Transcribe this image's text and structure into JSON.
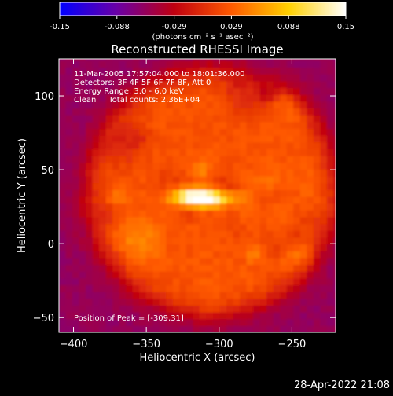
{
  "chart_data": {
    "type": "heatmap",
    "title": "Reconstructed RHESSI Image",
    "xlabel": "Heliocentric X (arcsec)",
    "ylabel": "Heliocentric Y (arcsec)",
    "xlim": [
      -410,
      -220
    ],
    "ylim": [
      -60,
      125
    ],
    "x_ticks": [
      -400,
      -350,
      -300,
      -250
    ],
    "y_ticks": [
      -50,
      0,
      50,
      100
    ],
    "colorbar": {
      "min": -0.15,
      "max": 0.15,
      "ticks": [
        "-0.15",
        "-0.088",
        "-0.029",
        "0.029",
        "0.088",
        "0.15"
      ],
      "units_label": "(photons cm⁻² s⁻¹ asec⁻²)",
      "colormap": [
        "#0000ff",
        "#6a00a6",
        "#c00010",
        "#ff5a00",
        "#ffd000",
        "#ffffff"
      ]
    },
    "annotations": [
      "11-Mar-2005 17:57:04.000 to 18:01:36.000",
      "Detectors: 3F 4F 5F 6F 7F 8F, Att 0",
      "Energy Range: 3.0 - 6.0 keV",
      "Clean     Total counts: 2.36E+04"
    ],
    "peak_label": "Position of Peak = [-309,31]",
    "peak": {
      "x": -309,
      "y": 31,
      "value": 0.15
    },
    "source_center": {
      "x": -305,
      "y": 35
    },
    "source_radius": 85,
    "background_value": -0.06
  },
  "footer": {
    "timestamp": "28-Apr-2022 21:08"
  }
}
